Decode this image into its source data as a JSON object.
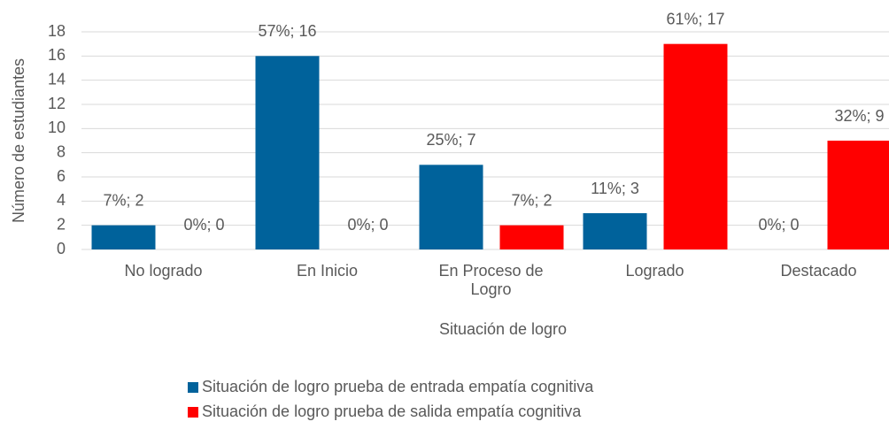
{
  "chart_data": {
    "type": "bar",
    "categories": [
      "No logrado",
      "En Inicio",
      "En Proceso de Logro",
      "Logrado",
      "Destacado"
    ],
    "series": [
      {
        "name": "Situación de logro prueba de entrada empatía cognitiva",
        "color": "#00629b",
        "values": [
          2,
          16,
          7,
          3,
          0
        ],
        "value_labels": [
          "7%; 2",
          "57%; 16",
          "25%; 7",
          "11%; 3",
          "0%; 0"
        ]
      },
      {
        "name": "Situación de logro prueba de salida empatía cognitiva",
        "color": "#ff0000",
        "values": [
          0,
          0,
          2,
          17,
          9
        ],
        "value_labels": [
          "0%; 0",
          "0%; 0",
          "7%; 2",
          "61%; 17",
          "32%; 9"
        ]
      }
    ],
    "xlabel": "Situación de logro",
    "ylabel": "Número de estudiantes",
    "ylim": [
      0,
      18
    ],
    "yticks": [
      0,
      2,
      4,
      6,
      8,
      10,
      12,
      14,
      16,
      18
    ],
    "grid": true
  }
}
